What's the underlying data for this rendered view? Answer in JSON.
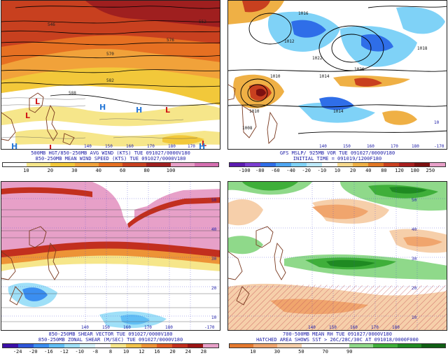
{
  "panels": [
    {
      "id": "tl",
      "caption1": "500MB HGT/850-250MB AVG WIND (KTS) TUE 091027/0000V180",
      "caption2": "850-250MB MEAN WIND SPEED (KTS) TUE 091027/0000V180",
      "ticks": [
        "10",
        "20",
        "30",
        "40",
        "60",
        "80",
        "100"
      ],
      "colors": [
        "#ffffff",
        "#f6e68a",
        "#f2c83a",
        "#f1a23a",
        "#e67022",
        "#c8401f",
        "#9f1f1f",
        "#e7a0c8",
        "#d46fb0"
      ],
      "low_labels": [
        "L",
        "L",
        "L",
        "L",
        "L"
      ],
      "high_labels": [
        "H",
        "H",
        "H",
        "H"
      ],
      "contour_labels": [
        "570",
        "576",
        "582",
        "588",
        "546",
        "552"
      ],
      "lon_labels": [
        "140",
        "150",
        "160",
        "170",
        "180",
        "170"
      ]
    },
    {
      "id": "tr",
      "caption1": "GFS MSLP/ 925MB VOR TUE 091027/0000V180",
      "caption2": "INITIAL TIME = 091019/1200F180",
      "ticks": [
        "-100",
        "-80",
        "-60",
        "-40",
        "-20",
        "-10",
        "10",
        "20",
        "40",
        "80",
        "120",
        "180",
        "250"
      ],
      "colors": [
        "#5c1bb0",
        "#7b3ed1",
        "#2f6ee8",
        "#4fa6f2",
        "#7fd2f7",
        "#bde9fb",
        "#ffffff",
        "#f7d98d",
        "#efb045",
        "#e17724",
        "#c8401f",
        "#a81f1f",
        "#7c1010",
        "#e7a0c8"
      ],
      "contour_labels": [
        "1010",
        "1016",
        "1012",
        "1014",
        "1022",
        "1026",
        "1018",
        "1014",
        "1010",
        "1008"
      ],
      "lon_labels": [
        "140",
        "150",
        "160",
        "170",
        "180",
        "-170",
        "10"
      ]
    },
    {
      "id": "bl",
      "caption1": "850-250MB SHEAR VECTOR TUE 091027/0000V180",
      "caption2": "850-250MB ZONAL SHEAR (M/SEC) TUE 091027/0000V180",
      "ticks": [
        "-24",
        "-20",
        "-16",
        "-12",
        "-10",
        "-8",
        "8",
        "10",
        "12",
        "16",
        "20",
        "24",
        "28"
      ],
      "colors": [
        "#3b0fa8",
        "#2d55d8",
        "#3b8ef0",
        "#62bff5",
        "#9fe0f8",
        "#d6f2fb",
        "#ffffff",
        "#f6e68a",
        "#f1c24a",
        "#ed9336",
        "#e05c23",
        "#c22f1e",
        "#9a1414",
        "#e7a0c8"
      ],
      "lat_labels": [
        "50",
        "40",
        "30",
        "20",
        "10"
      ],
      "lon_labels": [
        "140",
        "150",
        "160",
        "170",
        "180",
        "-170"
      ]
    },
    {
      "id": "br",
      "caption1": "700-500MB MEAN RH TUE 091027/0000V180",
      "caption2": "HATCHED AREA SHOWS SST > 26C/28C/30C AT 091018/0000F000",
      "ticks": [
        "10",
        "30",
        "50",
        "70",
        "90"
      ],
      "colors": [
        "#e4782e",
        "#f0a56d",
        "#f6cfaa",
        "#ffffff",
        "#ffffff",
        "#8fd98a",
        "#3faf3a",
        "#1f8a22",
        "#0f5f14"
      ],
      "lat_labels": [
        "50",
        "40",
        "30",
        "20",
        "10"
      ],
      "lon_labels": [
        "140",
        "150",
        "160",
        "170",
        "180"
      ]
    }
  ]
}
